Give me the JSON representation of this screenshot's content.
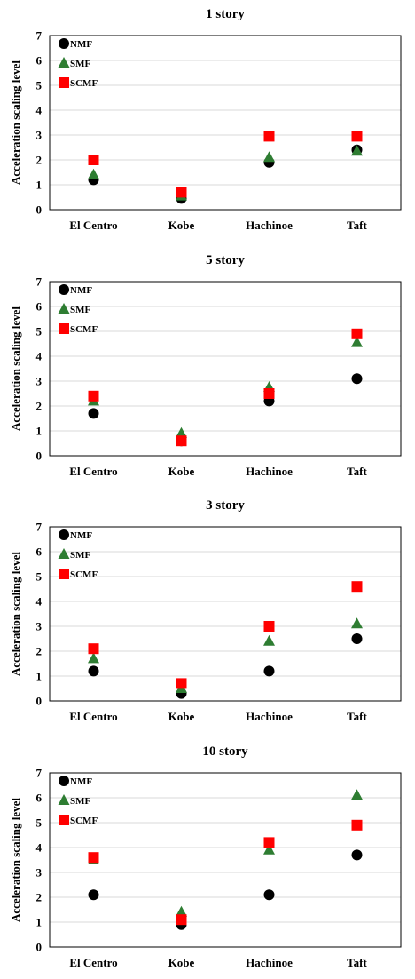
{
  "chart_data": [
    {
      "type": "scatter",
      "title": "1 story",
      "ylabel": "Acceleration scaling level",
      "ylim": [
        0,
        7
      ],
      "yticks": [
        0,
        1,
        2,
        3,
        4,
        5,
        6,
        7
      ],
      "grid": true,
      "legend_position": "top-left",
      "categories": [
        "El Centro",
        "Kobe",
        "Hachinoe",
        "Taft"
      ],
      "series": [
        {
          "name": "NMF",
          "marker": "circle",
          "color": "#000000",
          "values": [
            1.2,
            0.45,
            1.9,
            2.4
          ]
        },
        {
          "name": "SMF",
          "marker": "triangle",
          "color": "#2e7d32",
          "values": [
            1.4,
            0.55,
            2.1,
            2.35
          ]
        },
        {
          "name": "SCMF",
          "marker": "square",
          "color": "#ff0000",
          "values": [
            2.0,
            0.7,
            2.95,
            2.95
          ]
        }
      ]
    },
    {
      "type": "scatter",
      "title": "5 story",
      "ylabel": "Acceleration scaling level",
      "ylim": [
        0,
        7
      ],
      "yticks": [
        0,
        1,
        2,
        3,
        4,
        5,
        6,
        7
      ],
      "grid": true,
      "legend_position": "top-left",
      "categories": [
        "El Centro",
        "Kobe",
        "Hachinoe",
        "Taft"
      ],
      "series": [
        {
          "name": "NMF",
          "marker": "circle",
          "color": "#000000",
          "values": [
            1.7,
            0.6,
            2.2,
            3.1
          ]
        },
        {
          "name": "SMF",
          "marker": "triangle",
          "color": "#2e7d32",
          "values": [
            2.2,
            0.9,
            2.75,
            4.55
          ]
        },
        {
          "name": "SCMF",
          "marker": "square",
          "color": "#ff0000",
          "values": [
            2.4,
            0.6,
            2.5,
            4.9
          ]
        }
      ]
    },
    {
      "type": "scatter",
      "title": "3 story",
      "ylabel": "Acceleration scaling level",
      "ylim": [
        0,
        7
      ],
      "yticks": [
        0,
        1,
        2,
        3,
        4,
        5,
        6,
        7
      ],
      "grid": true,
      "legend_position": "top-left",
      "categories": [
        "El Centro",
        "Kobe",
        "Hachinoe",
        "Taft"
      ],
      "series": [
        {
          "name": "NMF",
          "marker": "circle",
          "color": "#000000",
          "values": [
            1.2,
            0.3,
            1.2,
            2.5
          ]
        },
        {
          "name": "SMF",
          "marker": "triangle",
          "color": "#2e7d32",
          "values": [
            1.7,
            0.5,
            2.4,
            3.1
          ]
        },
        {
          "name": "SCMF",
          "marker": "square",
          "color": "#ff0000",
          "values": [
            2.1,
            0.7,
            3.0,
            4.6
          ]
        }
      ]
    },
    {
      "type": "scatter",
      "title": "10 story",
      "ylabel": "Acceleration scaling level",
      "ylim": [
        0,
        7
      ],
      "yticks": [
        0,
        1,
        2,
        3,
        4,
        5,
        6,
        7
      ],
      "grid": true,
      "legend_position": "top-left",
      "categories": [
        "El Centro",
        "Kobe",
        "Hachinoe",
        "Taft"
      ],
      "series": [
        {
          "name": "NMF",
          "marker": "circle",
          "color": "#000000",
          "values": [
            2.1,
            0.9,
            2.1,
            3.7
          ]
        },
        {
          "name": "SMF",
          "marker": "triangle",
          "color": "#2e7d32",
          "values": [
            3.5,
            1.4,
            3.9,
            6.1
          ]
        },
        {
          "name": "SCMF",
          "marker": "square",
          "color": "#ff0000",
          "values": [
            3.6,
            1.1,
            4.2,
            4.9
          ]
        }
      ]
    }
  ]
}
